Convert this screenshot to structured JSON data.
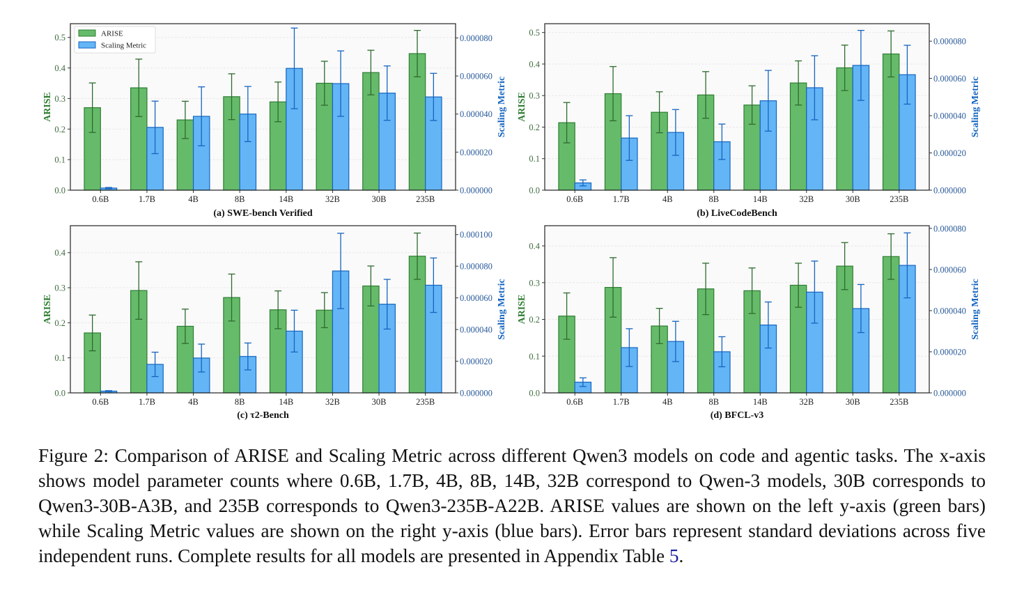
{
  "figure": {
    "caption_prefix": "Figure 2: Comparison of ARISE and Scaling Metric across different Qwen3 models on code and agentic tasks. The x-axis shows model parameter counts where 0.6B, 1.7B, 4B, 8B, 14B, 32B correspond to Qwen-3 models, 30B corresponds to Qwen3-30B-A3B, and 235B corresponds to Qwen3-235B-A22B. ARISE values are shown on the left y-axis (green bars) while Scaling Metric values are shown on the right y-axis (blue bars). Error bars represent standard deviations across five independent runs. Complete results for all models are presented in Appendix Table ",
    "caption_ref": "5",
    "caption_suffix": "."
  },
  "colors": {
    "arise_fill": "#66bb6a",
    "arise_edge": "#2e7d32",
    "arise_err": "#2e6b2e",
    "scaling_fill": "#64b5f6",
    "scaling_edge": "#1565c0",
    "scaling_err": "#1565c0",
    "arise_label": "#2e7d32",
    "scaling_label": "#1565c0",
    "tick_left": "#3f6b3f",
    "tick_right": "#2a5a9a",
    "plot_bg": "#fafafa",
    "grid": "#e8e8e8"
  },
  "chart_data": [
    {
      "type": "bar",
      "title": "(a) SWE-bench Verified",
      "categories": [
        "0.6B",
        "1.7B",
        "4B",
        "8B",
        "14B",
        "32B",
        "30B",
        "235B"
      ],
      "ylabel": "ARISE",
      "y2label": "Scaling Metric",
      "ylim": [
        0,
        0.545
      ],
      "y2lim": [
        0,
        8.75e-05
      ],
      "yticks": [
        "0.0",
        "0.1",
        "0.2",
        "0.3",
        "0.4",
        "0.5"
      ],
      "yticks_values": [
        0,
        0.1,
        0.2,
        0.3,
        0.4,
        0.5
      ],
      "y2ticks": [
        "0.000000",
        "0.000020",
        "0.000040",
        "0.000060",
        "0.000080"
      ],
      "y2ticks_values": [
        0,
        2e-05,
        4e-05,
        6e-05,
        8e-05
      ],
      "legend": {
        "entries": [
          "ARISE",
          "Scaling Metric"
        ],
        "position": "top-left"
      },
      "grid": true,
      "series": [
        {
          "name": "ARISE",
          "axis": "left",
          "values": [
            0.27,
            0.335,
            0.23,
            0.306,
            0.289,
            0.35,
            0.385,
            0.447
          ],
          "err": [
            0.081,
            0.094,
            0.061,
            0.075,
            0.065,
            0.072,
            0.073,
            0.076
          ]
        },
        {
          "name": "Scaling Metric",
          "axis": "right",
          "values": [
            1.1e-06,
            3.3e-05,
            3.88e-05,
            4e-05,
            6.4e-05,
            5.6e-05,
            5.1e-05,
            4.9e-05
          ],
          "err": [
            3e-07,
            1.38e-05,
            1.55e-05,
            1.45e-05,
            2.12e-05,
            1.72e-05,
            1.43e-05,
            1.24e-05
          ]
        }
      ]
    },
    {
      "type": "bar",
      "title": "(b) LiveCodeBench",
      "categories": [
        "0.6B",
        "1.7B",
        "4B",
        "8B",
        "14B",
        "32B",
        "30B",
        "235B"
      ],
      "ylabel": "ARISE",
      "y2label": "Scaling Metric",
      "ylim": [
        0,
        0.528
      ],
      "y2lim": [
        0,
        8.94e-05
      ],
      "yticks": [
        "0.0",
        "0.1",
        "0.2",
        "0.3",
        "0.4",
        "0.5"
      ],
      "yticks_values": [
        0,
        0.1,
        0.2,
        0.3,
        0.4,
        0.5
      ],
      "y2ticks": [
        "0.000000",
        "0.000020",
        "0.000040",
        "0.000060",
        "0.000080"
      ],
      "y2ticks_values": [
        0,
        2e-05,
        4e-05,
        6e-05,
        8e-05
      ],
      "legend": null,
      "grid": true,
      "series": [
        {
          "name": "ARISE",
          "axis": "left",
          "values": [
            0.214,
            0.306,
            0.247,
            0.302,
            0.27,
            0.34,
            0.388,
            0.432
          ],
          "err": [
            0.064,
            0.086,
            0.065,
            0.074,
            0.061,
            0.07,
            0.072,
            0.073
          ]
        },
        {
          "name": "Scaling Metric",
          "axis": "right",
          "values": [
            3.9e-06,
            2.8e-05,
            3.1e-05,
            2.6e-05,
            4.8e-05,
            5.5e-05,
            6.7e-05,
            6.2e-05
          ],
          "err": [
            1.6e-06,
            1.2e-05,
            1.23e-05,
            9.5e-06,
            1.63e-05,
            1.72e-05,
            1.88e-05,
            1.58e-05
          ]
        }
      ]
    },
    {
      "type": "bar",
      "title": "(c) τ2-Bench",
      "categories": [
        "0.6B",
        "1.7B",
        "4B",
        "8B",
        "14B",
        "32B",
        "30B",
        "235B"
      ],
      "ylabel": "ARISE",
      "y2label": "Scaling Metric",
      "ylim": [
        0,
        0.477
      ],
      "y2lim": [
        0,
        0.0001056
      ],
      "yticks": [
        "0.0",
        "0.1",
        "0.2",
        "0.3",
        "0.4"
      ],
      "yticks_values": [
        0,
        0.1,
        0.2,
        0.3,
        0.4
      ],
      "y2ticks": [
        "0.000000",
        "0.000020",
        "0.000040",
        "0.000060",
        "0.000080",
        "0.000100"
      ],
      "y2ticks_values": [
        0,
        2e-05,
        4e-05,
        6e-05,
        8e-05,
        0.0001
      ],
      "legend": null,
      "grid": true,
      "series": [
        {
          "name": "ARISE",
          "axis": "left",
          "values": [
            0.171,
            0.292,
            0.19,
            0.272,
            0.237,
            0.236,
            0.305,
            0.39
          ],
          "err": [
            0.051,
            0.082,
            0.049,
            0.067,
            0.054,
            0.05,
            0.057,
            0.066
          ]
        },
        {
          "name": "Scaling Metric",
          "axis": "right",
          "values": [
            1.1e-06,
            1.8e-05,
            2.2e-05,
            2.3e-05,
            3.9e-05,
            7.7e-05,
            5.6e-05,
            6.8e-05
          ],
          "err": [
            3e-07,
            7.7e-06,
            8.8e-06,
            8.5e-06,
            1.32e-05,
            2.38e-05,
            1.57e-05,
            1.72e-05
          ]
        }
      ]
    },
    {
      "type": "bar",
      "title": "(d) BFCL-v3",
      "categories": [
        "0.6B",
        "1.7B",
        "4B",
        "8B",
        "14B",
        "32B",
        "30B",
        "235B"
      ],
      "ylabel": "ARISE",
      "y2label": "Scaling Metric",
      "ylim": [
        0,
        0.455
      ],
      "y2lim": [
        0,
        8.13e-05
      ],
      "yticks": [
        "0.0",
        "0.1",
        "0.2",
        "0.3",
        "0.4"
      ],
      "yticks_values": [
        0,
        0.1,
        0.2,
        0.3,
        0.4
      ],
      "y2ticks": [
        "0.000000",
        "0.000020",
        "0.000040",
        "0.000060",
        "0.000080"
      ],
      "y2ticks_values": [
        0,
        2e-05,
        4e-05,
        6e-05,
        8e-05
      ],
      "legend": null,
      "grid": true,
      "series": [
        {
          "name": "ARISE",
          "axis": "left",
          "values": [
            0.209,
            0.287,
            0.182,
            0.283,
            0.278,
            0.293,
            0.345,
            0.371
          ],
          "err": [
            0.063,
            0.081,
            0.048,
            0.07,
            0.062,
            0.06,
            0.064,
            0.062
          ]
        },
        {
          "name": "Scaling Metric",
          "axis": "right",
          "values": [
            5.2e-06,
            2.2e-05,
            2.5e-05,
            2e-05,
            3.3e-05,
            4.9e-05,
            4.1e-05,
            6.2e-05
          ],
          "err": [
            2.1e-06,
            9.2e-06,
            9.8e-06,
            7.3e-06,
            1.12e-05,
            1.51e-05,
            1.17e-05,
            1.58e-05
          ]
        }
      ]
    }
  ]
}
